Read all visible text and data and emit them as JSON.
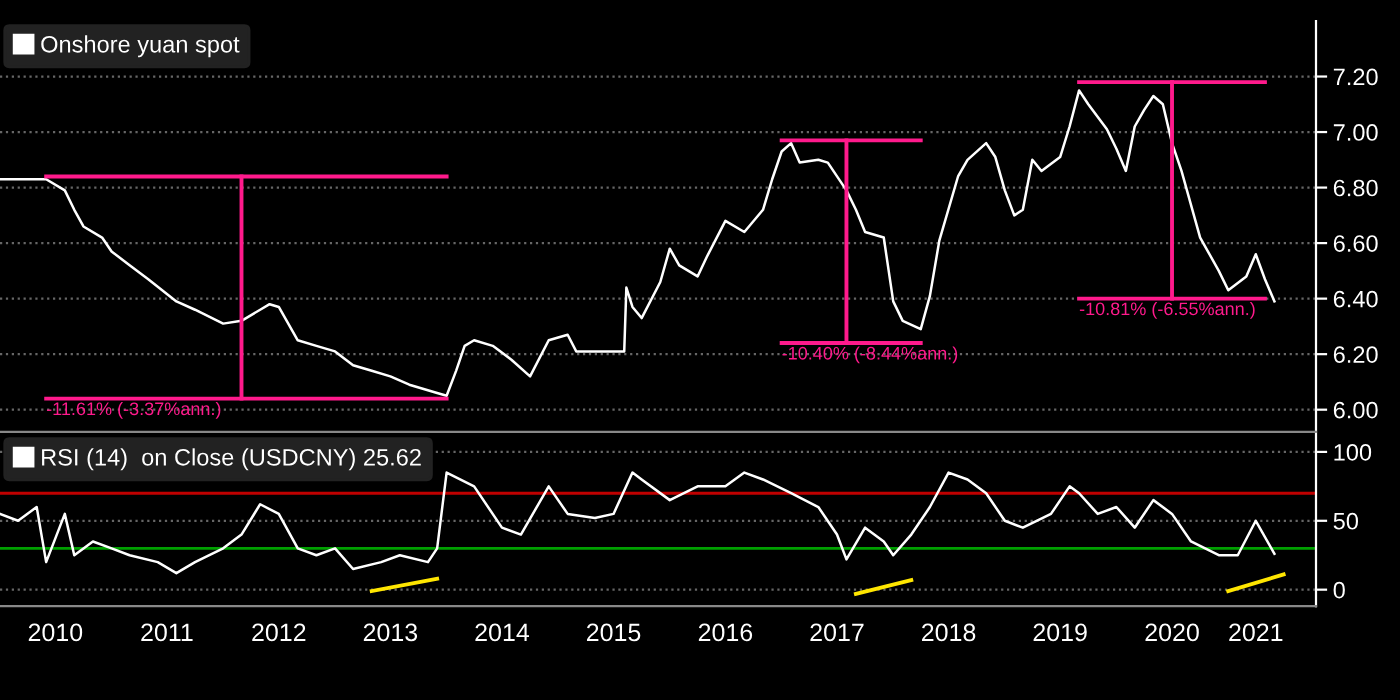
{
  "chart_data": [
    {
      "type": "line",
      "ylim": [
        5.92,
        7.4
      ],
      "yticks": [
        {
          "value": 6.0,
          "label": "6.00"
        },
        {
          "value": 6.2,
          "label": "6.20"
        },
        {
          "value": 6.4,
          "label": "6.40"
        },
        {
          "value": 6.6,
          "label": "6.60"
        },
        {
          "value": 6.8,
          "label": "6.80"
        },
        {
          "value": 7.0,
          "label": "7.00"
        },
        {
          "value": 7.2,
          "label": "7.20"
        }
      ],
      "xlim": [
        "2010-01-01",
        "2021-10-15"
      ],
      "tick_labels": "y",
      "grid": "y",
      "legend": "top left",
      "annotations": [
        {
          "text": "-11.61% (-3.37%ann.)",
          "x": "2010-06",
          "y": 6.04
        },
        {
          "text": "-10.40% (-8.44%ann.)",
          "x": "2017-01",
          "y": 6.24
        },
        {
          "text": "-10.81% (-6.55%ann.)",
          "x": "2019-09",
          "y": 6.4
        }
      ],
      "series": [
        {
          "name": "Onshore yuan spot",
          "color": "#ffffff",
          "x": [
            "2010-01",
            "2010-06",
            "2010-08",
            "2010-09",
            "2010-10",
            "2010-12",
            "2011-01",
            "2011-03",
            "2011-05",
            "2011-08",
            "2011-10",
            "2012-01",
            "2012-03",
            "2012-05",
            "2012-06",
            "2012-07",
            "2012-09",
            "2012-11",
            "2013-01",
            "2013-03",
            "2013-05",
            "2013-07",
            "2013-09",
            "2013-12",
            "2014-01",
            "2014-02",
            "2014-03",
            "2014-04",
            "2014-06",
            "2014-08",
            "2014-10",
            "2014-12",
            "2015-02",
            "2015-03",
            "2015-06",
            "2015-08-05",
            "2015-08-12",
            "2015-09",
            "2015-10",
            "2015-12",
            "2016-01",
            "2016-02",
            "2016-04",
            "2016-05",
            "2016-07",
            "2016-09",
            "2016-11",
            "2016-12",
            "2017-01",
            "2017-02",
            "2017-03",
            "2017-05",
            "2017-06",
            "2017-08",
            "2017-09",
            "2017-10",
            "2017-12",
            "2018-01",
            "2018-02",
            "2018-04",
            "2018-05",
            "2018-06",
            "2018-08",
            "2018-09",
            "2018-11",
            "2018-12",
            "2019-01",
            "2019-02",
            "2019-03",
            "2019-04",
            "2019-05",
            "2019-07",
            "2019-08",
            "2019-09",
            "2019-10",
            "2019-12",
            "2020-01",
            "2020-02",
            "2020-03",
            "2020-04",
            "2020-05",
            "2020-06",
            "2020-07",
            "2020-08",
            "2020-10",
            "2020-12",
            "2021-01",
            "2021-03",
            "2021-04",
            "2021-05",
            "2021-06"
          ],
          "values": [
            6.83,
            6.83,
            6.79,
            6.72,
            6.66,
            6.62,
            6.57,
            6.52,
            6.47,
            6.39,
            6.36,
            6.31,
            6.32,
            6.36,
            6.38,
            6.37,
            6.25,
            6.23,
            6.21,
            6.16,
            6.14,
            6.12,
            6.09,
            6.06,
            6.05,
            6.14,
            6.23,
            6.25,
            6.23,
            6.18,
            6.12,
            6.25,
            6.27,
            6.21,
            6.21,
            6.21,
            6.44,
            6.37,
            6.33,
            6.46,
            6.58,
            6.52,
            6.48,
            6.55,
            6.68,
            6.64,
            6.72,
            6.83,
            6.93,
            6.96,
            6.89,
            6.9,
            6.89,
            6.79,
            6.72,
            6.64,
            6.62,
            6.39,
            6.32,
            6.29,
            6.41,
            6.61,
            6.84,
            6.9,
            6.96,
            6.91,
            6.79,
            6.7,
            6.72,
            6.9,
            6.86,
            6.91,
            7.02,
            7.15,
            7.1,
            7.01,
            6.94,
            6.86,
            7.02,
            7.08,
            7.13,
            7.1,
            6.96,
            6.86,
            6.62,
            6.5,
            6.43,
            6.48,
            6.56,
            6.47,
            6.39
          ]
        },
        {
          "color": "#ff1a8c",
          "x": [
            "2010-06",
            "2014-01"
          ],
          "values": [
            6.84,
            6.84
          ]
        },
        {
          "color": "#ff1a8c",
          "x": [
            "2010-06",
            "2014-01"
          ],
          "values": [
            6.04,
            6.04
          ]
        },
        {
          "color": "#ff1a8c",
          "x": [
            "2012-03",
            "2012-03"
          ],
          "values": [
            6.84,
            6.04
          ]
        },
        {
          "color": "#ff1a8c",
          "x": [
            "2017-01",
            "2018-04"
          ],
          "values": [
            6.97,
            6.97
          ]
        },
        {
          "color": "#ff1a8c",
          "x": [
            "2017-01",
            "2018-04"
          ],
          "values": [
            6.24,
            6.24
          ]
        },
        {
          "color": "#ff1a8c",
          "x": [
            "2017-08",
            "2017-08"
          ],
          "values": [
            6.97,
            6.24
          ]
        },
        {
          "color": "#ff1a8c",
          "x": [
            "2019-09",
            "2021-05"
          ],
          "values": [
            7.18,
            7.18
          ]
        },
        {
          "color": "#ff1a8c",
          "x": [
            "2019-09",
            "2021-05"
          ],
          "values": [
            6.4,
            6.4
          ]
        },
        {
          "color": "#ff1a8c",
          "x": [
            "2020-07",
            "2020-07"
          ],
          "values": [
            7.18,
            6.4
          ]
        }
      ]
    },
    {
      "type": "line",
      "ylim": [
        -12,
        113
      ],
      "yticks": [
        0,
        50,
        100
      ],
      "xlim": [
        "2010-01-01",
        "2021-10-15"
      ],
      "grid": "y",
      "legend": "top left",
      "xticks": [
        {
          "value": "2010-07-01",
          "label": "2010"
        },
        {
          "value": "2011-07-01",
          "label": "2011"
        },
        {
          "value": "2012-07-01",
          "label": "2012"
        },
        {
          "value": "2013-07-01",
          "label": "2013"
        },
        {
          "value": "2014-07-01",
          "label": "2014"
        },
        {
          "value": "2015-07-01",
          "label": "2015"
        },
        {
          "value": "2016-07-01",
          "label": "2016"
        },
        {
          "value": "2017-07-01",
          "label": "2017"
        },
        {
          "value": "2018-07-01",
          "label": "2018"
        },
        {
          "value": "2019-07-01",
          "label": "2019"
        },
        {
          "value": "2020-07-01",
          "label": "2020"
        },
        {
          "value": "2021-04-01",
          "label": "2021"
        }
      ],
      "ref_lines": [
        {
          "axis": "y",
          "value": 70,
          "color": "#c00000"
        },
        {
          "axis": "y",
          "value": 30,
          "color": "#00a000"
        }
      ],
      "series": [
        {
          "name": "RSI (14)  on Close (USDCNY) 25.62",
          "color": "#ffffff",
          "x": [
            "2010-01",
            "2010-03",
            "2010-05",
            "2010-06",
            "2010-08",
            "2010-09",
            "2010-11",
            "2011-01",
            "2011-03",
            "2011-06",
            "2011-08",
            "2011-10",
            "2012-01",
            "2012-03",
            "2012-05",
            "2012-07",
            "2012-09",
            "2012-11",
            "2013-01",
            "2013-03",
            "2013-06",
            "2013-08",
            "2013-11",
            "2013-12",
            "2014-01",
            "2014-04",
            "2014-07",
            "2014-09",
            "2014-12",
            "2015-02",
            "2015-05",
            "2015-07",
            "2015-09",
            "2015-10",
            "2016-01",
            "2016-04",
            "2016-07",
            "2016-09",
            "2016-11",
            "2017-02",
            "2017-05",
            "2017-07",
            "2017-08",
            "2017-10",
            "2017-12",
            "2018-01",
            "2018-03",
            "2018-05",
            "2018-07",
            "2018-09",
            "2018-11",
            "2019-01",
            "2019-03",
            "2019-06",
            "2019-08",
            "2019-09",
            "2019-11",
            "2020-01",
            "2020-03",
            "2020-05",
            "2020-07",
            "2020-09",
            "2020-12",
            "2021-02",
            "2021-04",
            "2021-06"
          ],
          "values": [
            55,
            50,
            60,
            20,
            55,
            25,
            35,
            30,
            25,
            20,
            12,
            20,
            30,
            40,
            62,
            55,
            30,
            25,
            30,
            15,
            20,
            25,
            20,
            30,
            85,
            75,
            45,
            40,
            75,
            55,
            52,
            55,
            85,
            80,
            65,
            75,
            75,
            85,
            80,
            70,
            60,
            40,
            22,
            45,
            35,
            25,
            40,
            60,
            85,
            80,
            70,
            50,
            45,
            55,
            75,
            70,
            55,
            60,
            45,
            65,
            55,
            35,
            25,
            25,
            50,
            26
          ]
        },
        {
          "color": "#ffe600",
          "x": [
            "2013-05",
            "2013-12"
          ],
          "values": [
            -1,
            8
          ]
        },
        {
          "color": "#ffe600",
          "x": [
            "2017-09",
            "2018-03"
          ],
          "values": [
            -3,
            7
          ]
        },
        {
          "color": "#ffe600",
          "x": [
            "2021-01",
            "2021-07"
          ],
          "values": [
            -1,
            11
          ]
        }
      ]
    }
  ]
}
